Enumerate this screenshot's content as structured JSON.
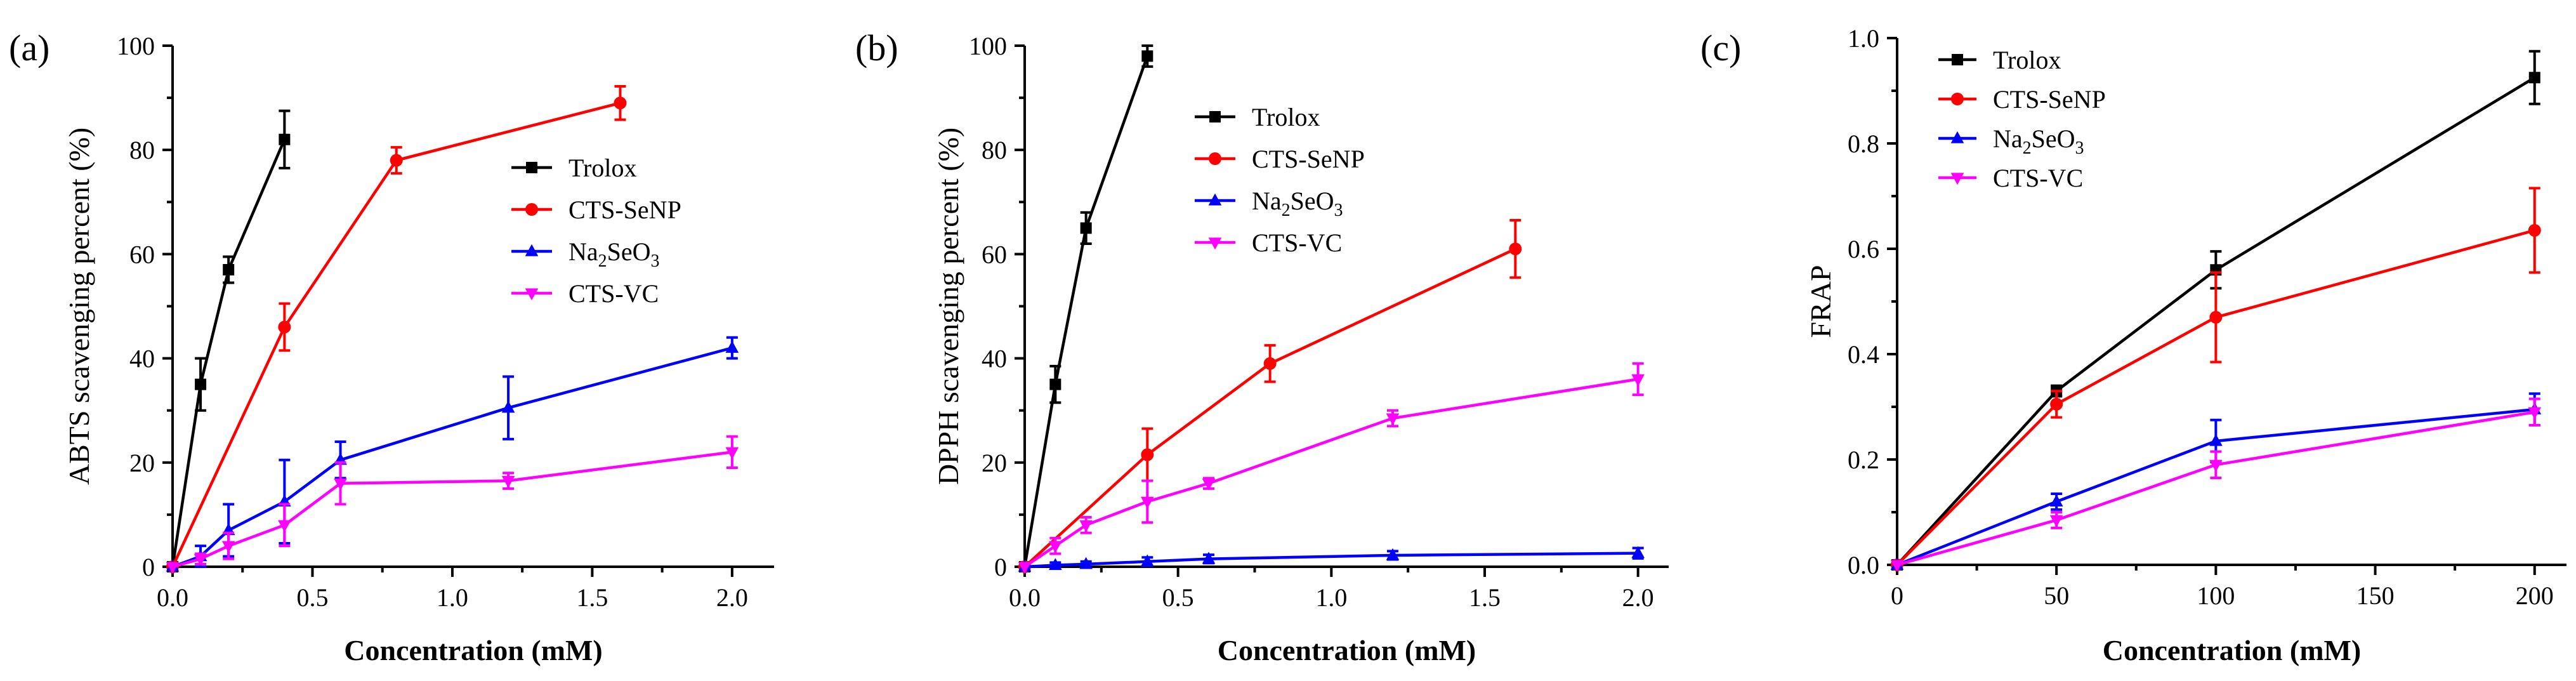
{
  "chart_data": [
    {
      "type": "line",
      "panel_label": "(a)",
      "title": "",
      "xlabel": "Concentration (mM)",
      "ylabel": "ABTS scavenging percent (%)",
      "xlim": [
        0,
        2.15
      ],
      "ylim": [
        0,
        100
      ],
      "xticks": [
        0.0,
        0.5,
        1.0,
        1.5,
        2.0
      ],
      "xtick_labels": [
        "0.0",
        "0.5",
        "1.0",
        "1.5",
        "2.0"
      ],
      "yticks": [
        0,
        20,
        40,
        60,
        80,
        100
      ],
      "ytick_labels": [
        "0",
        "20",
        "40",
        "60",
        "80",
        "100"
      ],
      "legend_position": "right-center",
      "series": [
        {
          "name": "Trolox",
          "color": "#000000",
          "marker": "square",
          "x": [
            0,
            0.1,
            0.2,
            0.4
          ],
          "y": [
            0,
            35,
            57,
            82
          ],
          "err": [
            0,
            5,
            2.5,
            5.5
          ]
        },
        {
          "name": "CTS-SeNP",
          "color": "#ff0000",
          "marker": "circle",
          "x": [
            0,
            0.4,
            0.8,
            1.6
          ],
          "y": [
            0,
            46,
            78,
            89
          ],
          "err": [
            0,
            4.5,
            2.5,
            3.2
          ]
        },
        {
          "name": "Na2SeO3",
          "name_base": "Na",
          "name_sub1": "2",
          "name_mid": "SeO",
          "name_sub2": "3",
          "color": "#0000ff",
          "marker": "triangle-up",
          "x": [
            0,
            0.1,
            0.2,
            0.4,
            0.6,
            1.2,
            2.0
          ],
          "y": [
            0,
            2,
            7,
            12.5,
            20.5,
            30.5,
            42
          ],
          "err": [
            0,
            2,
            5,
            8,
            3.5,
            6,
            2
          ]
        },
        {
          "name": "CTS-VC",
          "color": "#ff00ff",
          "marker": "triangle-down",
          "x": [
            0,
            0.1,
            0.2,
            0.4,
            0.6,
            1.2,
            2.0
          ],
          "y": [
            0,
            1.5,
            4,
            8,
            16,
            16.5,
            22
          ],
          "err": [
            0,
            1,
            2.5,
            4,
            4,
            1.5,
            3
          ]
        }
      ]
    },
    {
      "type": "line",
      "panel_label": "(b)",
      "title": "",
      "xlabel": "Concentration (mM)",
      "ylabel": "DPPH scavenging percent (%)",
      "xlim": [
        0,
        2.1
      ],
      "ylim": [
        0,
        100
      ],
      "xticks": [
        0.0,
        0.5,
        1.0,
        1.5,
        2.0
      ],
      "xtick_labels": [
        "0.0",
        "0.5",
        "1.0",
        "1.5",
        "2.0"
      ],
      "yticks": [
        0,
        20,
        40,
        60,
        80,
        100
      ],
      "ytick_labels": [
        "0",
        "20",
        "40",
        "60",
        "80",
        "100"
      ],
      "legend_position": "top-right",
      "series": [
        {
          "name": "Trolox",
          "color": "#000000",
          "marker": "square",
          "x": [
            0,
            0.1,
            0.2,
            0.4
          ],
          "y": [
            0,
            35,
            65,
            98
          ],
          "err": [
            0,
            3.5,
            3,
            2
          ]
        },
        {
          "name": "CTS-SeNP",
          "color": "#ff0000",
          "marker": "circle",
          "x": [
            0,
            0.4,
            0.8,
            1.6
          ],
          "y": [
            0,
            21.5,
            39,
            61
          ],
          "err": [
            0,
            5,
            3.5,
            5.5
          ]
        },
        {
          "name": "Na2SeO3",
          "name_base": "Na",
          "name_sub1": "2",
          "name_mid": "SeO",
          "name_sub2": "3",
          "color": "#0000ff",
          "marker": "triangle-up",
          "x": [
            0,
            0.1,
            0.2,
            0.4,
            0.6,
            1.2,
            2.0
          ],
          "y": [
            0,
            0.3,
            0.5,
            1,
            1.5,
            2.2,
            2.6
          ],
          "err": [
            0,
            0.5,
            0.5,
            0.8,
            0.8,
            0.8,
            1
          ]
        },
        {
          "name": "CTS-VC",
          "color": "#ff00ff",
          "marker": "triangle-down",
          "x": [
            0,
            0.1,
            0.2,
            0.4,
            0.6,
            1.2,
            2.0
          ],
          "y": [
            0,
            4,
            8,
            12.5,
            16,
            28.5,
            36
          ],
          "err": [
            0,
            1.5,
            1.5,
            4,
            1,
            1.5,
            3
          ]
        }
      ]
    },
    {
      "type": "line",
      "panel_label": "(c)",
      "title": "",
      "xlabel": "Concentration (mM)",
      "ylabel": "FRAP",
      "xlim": [
        0,
        210
      ],
      "ylim": [
        0,
        1.0
      ],
      "xticks": [
        0,
        50,
        100,
        150,
        200
      ],
      "xtick_labels": [
        "0",
        "50",
        "100",
        "150",
        "200"
      ],
      "yticks": [
        0,
        0.2,
        0.4,
        0.6,
        0.8,
        1.0
      ],
      "ytick_labels": [
        "0.0",
        "0.2",
        "0.4",
        "0.6",
        "0.8",
        "1.0"
      ],
      "legend_position": "top-left",
      "series": [
        {
          "name": "Trolox",
          "color": "#000000",
          "marker": "square",
          "x": [
            0,
            50,
            100,
            200
          ],
          "y": [
            0,
            0.33,
            0.56,
            0.925
          ],
          "err": [
            0,
            0.01,
            0.035,
            0.05
          ]
        },
        {
          "name": "CTS-SeNP",
          "color": "#ff0000",
          "marker": "circle",
          "x": [
            0,
            50,
            100,
            200
          ],
          "y": [
            0,
            0.305,
            0.47,
            0.635
          ],
          "err": [
            0,
            0.025,
            0.085,
            0.08
          ]
        },
        {
          "name": "Na2SeO3",
          "name_base": "Na",
          "name_sub1": "2",
          "name_mid": "SeO",
          "name_sub2": "3",
          "color": "#0000ff",
          "marker": "triangle-up",
          "x": [
            0,
            50,
            100,
            200
          ],
          "y": [
            0,
            0.12,
            0.235,
            0.295
          ],
          "err": [
            0,
            0.015,
            0.04,
            0.03
          ]
        },
        {
          "name": "CTS-VC",
          "color": "#ff00ff",
          "marker": "triangle-down",
          "x": [
            0,
            50,
            100,
            200
          ],
          "y": [
            0,
            0.085,
            0.19,
            0.29
          ],
          "err": [
            0,
            0.015,
            0.025,
            0.025
          ]
        }
      ]
    }
  ]
}
